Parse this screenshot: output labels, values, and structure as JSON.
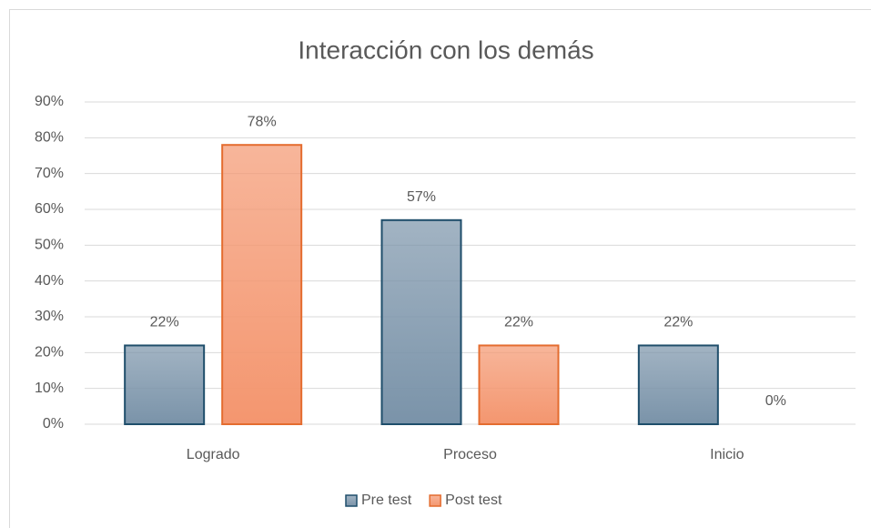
{
  "chart_data": {
    "type": "bar",
    "title": "Interacción con los demás",
    "categories": [
      "Logrado",
      "Proceso",
      "Inicio"
    ],
    "series": [
      {
        "name": "Pre test",
        "color": "#7a93a9",
        "border_color": "#1f4e6b",
        "values": [
          22,
          57,
          22
        ],
        "value_labels": [
          "22%",
          "57%",
          "22%"
        ]
      },
      {
        "name": "Post test",
        "color": "#f4966f",
        "border_color": "#e46c2f",
        "values": [
          78,
          22,
          0
        ],
        "value_labels": [
          "78%",
          "22%",
          "0%"
        ]
      }
    ],
    "ylim": [
      0,
      90
    ],
    "yticks": [
      {
        "value": 0,
        "label": "0%"
      },
      {
        "value": 10,
        "label": "10%"
      },
      {
        "value": 20,
        "label": "20%"
      },
      {
        "value": 30,
        "label": "30%"
      },
      {
        "value": 40,
        "label": "40%"
      },
      {
        "value": 50,
        "label": "50%"
      },
      {
        "value": 60,
        "label": "60%"
      },
      {
        "value": 70,
        "label": "70%"
      },
      {
        "value": 80,
        "label": "80%"
      },
      {
        "value": 90,
        "label": "90%"
      }
    ],
    "grid": true,
    "legend": "bottom"
  }
}
